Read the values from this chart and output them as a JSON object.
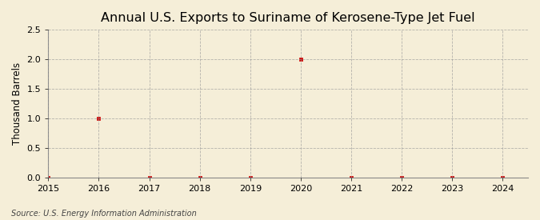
{
  "title": "Annual U.S. Exports to Suriname of Kerosene-Type Jet Fuel",
  "ylabel": "Thousand Barrels",
  "source": "Source: U.S. Energy Information Administration",
  "xlim": [
    2015,
    2024.5
  ],
  "ylim": [
    0,
    2.5
  ],
  "xticks": [
    2015,
    2016,
    2017,
    2018,
    2019,
    2020,
    2021,
    2022,
    2023,
    2024
  ],
  "yticks": [
    0.0,
    0.5,
    1.0,
    1.5,
    2.0,
    2.5
  ],
  "x_data": [
    2016,
    2020
  ],
  "y_data": [
    1.0,
    2.0
  ],
  "x_zero": [
    2015,
    2017,
    2018,
    2019,
    2021,
    2022,
    2023,
    2024
  ],
  "y_zero": [
    0.0,
    0.0,
    0.0,
    0.0,
    0.0,
    0.0,
    0.0,
    0.0
  ],
  "marker_color": "#cc0000",
  "marker_style": "s",
  "marker_size": 3,
  "background_color": "#f5eed8",
  "plot_bg_color": "#f5eed8",
  "grid_color": "#999999",
  "grid_style": "--",
  "grid_alpha": 0.7,
  "title_fontsize": 11.5,
  "label_fontsize": 8.5,
  "tick_fontsize": 8,
  "source_fontsize": 7
}
